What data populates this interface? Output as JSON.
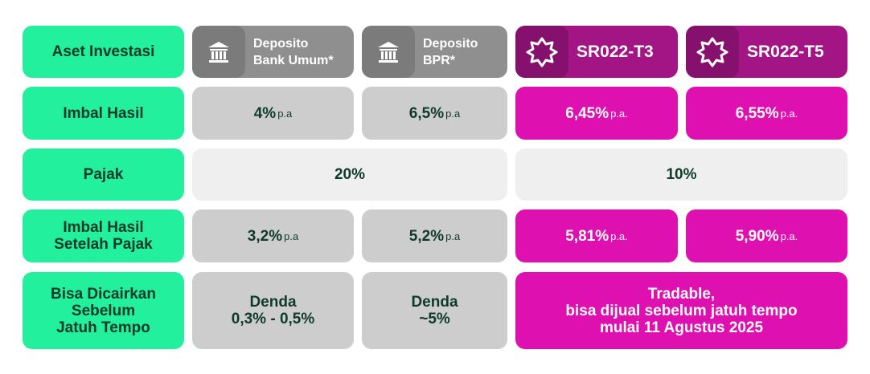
{
  "header_label": "Aset Investasi",
  "columns": [
    {
      "lines": [
        "Deposito",
        "Bank Umum*"
      ]
    },
    {
      "lines": [
        "Deposito",
        "BPR*"
      ]
    },
    {
      "lines": [
        "SR022-T3"
      ]
    },
    {
      "lines": [
        "SR022-T5"
      ]
    }
  ],
  "rows": [
    {
      "label": [
        "Imbal Hasil"
      ],
      "cells": [
        {
          "value": "4%",
          "unit": "p.a"
        },
        {
          "value": "6,5%",
          "unit": "p.a"
        },
        {
          "value": "6,45%",
          "unit": "p.a."
        },
        {
          "value": "6,55%",
          "unit": "p.a."
        }
      ]
    },
    {
      "label": [
        "Pajak"
      ],
      "cells": [
        {
          "value": "20%"
        },
        {
          "value": "10%"
        }
      ]
    },
    {
      "label": [
        "Imbal Hasil",
        "Setelah Pajak"
      ],
      "cells": [
        {
          "value": "3,2%",
          "unit": "p.a"
        },
        {
          "value": "5,2%",
          "unit": "p.a"
        },
        {
          "value": "5,81%",
          "unit": "p.a."
        },
        {
          "value": "5,90%",
          "unit": "p.a."
        }
      ]
    },
    {
      "label": [
        "Bisa Dicairkan",
        "Sebelum",
        "Jatuh Tempo"
      ],
      "cells": [
        {
          "lines": [
            "Denda",
            "0,3% - 0,5%"
          ]
        },
        {
          "lines": [
            "Denda",
            "~5%"
          ]
        },
        {
          "lines": [
            "Tradable,",
            "bisa dijual sebelum jatuh tempo",
            "mulai 11 Agustus 2025"
          ]
        }
      ]
    }
  ]
}
